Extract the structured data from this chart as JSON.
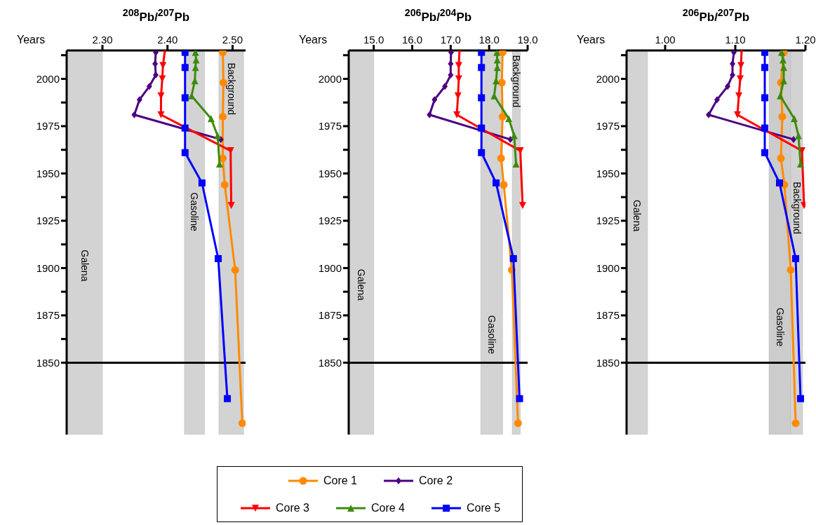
{
  "chart_data": [
    {
      "type": "line",
      "xlabel": "$^{208}$Pb/$^{207}$Pb",
      "ylabel": "Years",
      "xlim": [
        2.245,
        2.52
      ],
      "xticks": [
        {
          "value": 2.3,
          "label": "2.30"
        },
        {
          "value": 2.4,
          "label": "2.40"
        },
        {
          "value": 2.5,
          "label": "2.50"
        }
      ],
      "ylim": [
        1812,
        2015
      ],
      "yticks": [
        1850,
        {
          "value": 1862.5,
          "label": null
        },
        1875,
        {
          "value": 1887.5,
          "label": null
        },
        1900,
        {
          "value": 1912.5,
          "label": null
        },
        1925,
        {
          "value": 1937.5,
          "label": null
        },
        1950,
        {
          "value": 1962.5,
          "label": null
        },
        1975,
        {
          "value": 1987.5,
          "label": null
        },
        2000,
        {
          "value": 2012.5,
          "label": null
        }
      ],
      "bands": [
        {
          "axis": "x",
          "from": 2.245,
          "to": 2.3,
          "label": "Galena",
          "color": "#d3d3d3"
        },
        {
          "axis": "x",
          "from": 2.426,
          "to": 2.457,
          "label": "Gasoline",
          "color": "#d3d3d3"
        },
        {
          "axis": "x",
          "from": 2.479,
          "to": 2.517,
          "label": "Background",
          "color": "#d3d3d3"
        }
      ],
      "ref_lines": [
        {
          "axis": "y",
          "value": 1850,
          "color": "#000000"
        }
      ],
      "series": [
        {
          "color": "#ff8a00",
          "marker": "circle",
          "x": [
            2.485,
            2.486,
            2.485,
            2.485,
            2.488,
            2.504,
            2.515
          ],
          "values": [
            2014,
            1998,
            1980,
            1958,
            1944,
            1899,
            1818
          ]
        },
        {
          "color": "#4b0082",
          "marker": "diamond",
          "x": [
            2.382,
            2.381,
            2.382,
            2.372,
            2.357,
            2.349,
            2.482
          ],
          "values": [
            2014,
            2008,
            2002,
            1996,
            1989,
            1981,
            1968
          ]
        },
        {
          "color": "#ff0000",
          "marker": "triangle-down",
          "x": [
            2.396,
            2.393,
            2.392,
            2.39,
            2.39,
            2.497,
            2.498
          ],
          "values": [
            2015,
            2007,
            2000,
            1991,
            1981,
            1962,
            1933
          ]
        },
        {
          "color": "#3d8b0e",
          "marker": "triangle",
          "x": [
            2.443,
            2.444,
            2.443,
            2.442,
            2.437,
            2.467,
            2.477,
            2.48
          ],
          "values": [
            2014,
            2010,
            2006,
            1999,
            1991,
            1979,
            1970,
            1955
          ]
        },
        {
          "color": "#0000ff",
          "marker": "square",
          "x": [
            2.427,
            2.427,
            2.427,
            2.427,
            2.427,
            2.453,
            2.478,
            2.492
          ],
          "values": [
            2014,
            2006,
            1990,
            1974,
            1961,
            1945,
            1905,
            1831
          ]
        }
      ]
    },
    {
      "type": "line",
      "xlabel": "$^{206}$Pb/$^{204}$Pb",
      "ylabel": "Years",
      "legend": "bottom",
      "xlim": [
        14.35,
        19.0
      ],
      "xticks": [
        {
          "value": 15,
          "label": "15.0"
        },
        {
          "value": 16,
          "label": "16.0"
        },
        {
          "value": 17,
          "label": "17.0"
        },
        {
          "value": 18,
          "label": "18.0"
        },
        {
          "value": 19,
          "label": "19.0"
        }
      ],
      "ylim": [
        1812,
        2015
      ],
      "yticks": [
        1850,
        {
          "value": 1862.5,
          "label": null
        },
        1875,
        {
          "value": 1887.5,
          "label": null
        },
        1900,
        {
          "value": 1912.5,
          "label": null
        },
        1925,
        {
          "value": 1937.5,
          "label": null
        },
        1950,
        {
          "value": 1962.5,
          "label": null
        },
        1975,
        {
          "value": 1987.5,
          "label": null
        },
        2000,
        {
          "value": 2012.5,
          "label": null
        }
      ],
      "bands": [
        {
          "axis": "x",
          "from": 14.35,
          "to": 15.0,
          "label": "Galena",
          "color": "#d3d3d3"
        },
        {
          "axis": "x",
          "from": 17.78,
          "to": 18.35,
          "label": "Gasoline",
          "color": "#d3d3d3"
        },
        {
          "axis": "x",
          "from": 18.6,
          "to": 18.81,
          "label": "Background",
          "color": "#d3d3d3"
        }
      ],
      "ref_lines": [
        {
          "axis": "y",
          "value": 1850,
          "color": "#000000"
        }
      ],
      "series": [
        {
          "name": "Core 1",
          "color": "#ff8a00",
          "marker": "circle",
          "x": [
            18.35,
            18.33,
            18.35,
            18.31,
            18.38,
            18.59,
            18.75
          ],
          "values": [
            2014,
            1998,
            1980,
            1958,
            1944,
            1899,
            1818
          ]
        },
        {
          "name": "Core 2",
          "color": "#4b0082",
          "marker": "diamond",
          "x": [
            17.01,
            17.0,
            17.0,
            16.85,
            16.58,
            16.45,
            18.55
          ],
          "values": [
            2014,
            2008,
            2002,
            1996,
            1989,
            1981,
            1968
          ]
        },
        {
          "name": "Core 3",
          "color": "#ff0000",
          "marker": "triangle-down",
          "x": [
            17.23,
            17.21,
            17.21,
            17.19,
            17.16,
            18.81,
            18.87
          ],
          "values": [
            2015,
            2007,
            2000,
            1991,
            1981,
            1962,
            1933
          ]
        },
        {
          "name": "Core 4",
          "color": "#3d8b0e",
          "marker": "triangle",
          "x": [
            18.2,
            18.21,
            18.21,
            18.18,
            18.13,
            18.51,
            18.65,
            18.7
          ],
          "values": [
            2014,
            2010,
            2006,
            1999,
            1991,
            1979,
            1970,
            1955
          ]
        },
        {
          "name": "Core 5",
          "color": "#0000ff",
          "marker": "square",
          "x": [
            17.8,
            17.8,
            17.8,
            17.8,
            17.8,
            18.18,
            18.63,
            18.79
          ],
          "values": [
            2014,
            2006,
            1990,
            1974,
            1961,
            1945,
            1905,
            1831
          ]
        }
      ]
    },
    {
      "type": "line",
      "xlabel": "$^{206}$Pb/$^{207}$Pb",
      "ylabel": "Years",
      "xlim": [
        0.945,
        1.2
      ],
      "xticks": [
        {
          "value": 1.0,
          "label": "1.00"
        },
        {
          "value": 1.1,
          "label": "1.10"
        },
        {
          "value": 1.2,
          "label": "1.20"
        }
      ],
      "ylim": [
        1812,
        2015
      ],
      "yticks": [
        1850,
        {
          "value": 1862.5,
          "label": null
        },
        1875,
        {
          "value": 1887.5,
          "label": null
        },
        1900,
        {
          "value": 1912.5,
          "label": null
        },
        1925,
        {
          "value": 1937.5,
          "label": null
        },
        1950,
        {
          "value": 1962.5,
          "label": null
        },
        1975,
        {
          "value": 1987.5,
          "label": null
        },
        2000,
        {
          "value": 2012.5,
          "label": null
        }
      ],
      "bands": [
        {
          "axis": "x",
          "from": 0.945,
          "to": 0.975,
          "label": "Galena",
          "color": "#d3d3d3"
        },
        {
          "axis": "x",
          "from": 1.148,
          "to": 1.179,
          "label": "Gasoline",
          "color": "#cccccc"
        },
        {
          "axis": "x",
          "from": 1.179,
          "to": 1.196,
          "label": "Background",
          "color": "#d3d3d3"
        }
      ],
      "ref_lines": [
        {
          "axis": "y",
          "value": 1850,
          "color": "#000000"
        }
      ],
      "series": [
        {
          "color": "#ff8a00",
          "marker": "circle",
          "x": [
            1.169,
            1.165,
            1.167,
            1.165,
            1.17,
            1.179,
            1.186
          ],
          "values": [
            2014,
            1998,
            1980,
            1958,
            1944,
            1899,
            1818
          ]
        },
        {
          "color": "#4b0082",
          "marker": "diamond",
          "x": [
            1.098,
            1.096,
            1.096,
            1.089,
            1.074,
            1.062,
            1.183
          ],
          "values": [
            2014,
            2008,
            2002,
            1996,
            1989,
            1981,
            1968
          ]
        },
        {
          "color": "#ff0000",
          "marker": "triangle-down",
          "x": [
            1.109,
            1.108,
            1.107,
            1.105,
            1.103,
            1.195,
            1.198
          ],
          "values": [
            2015,
            2007,
            2000,
            1991,
            1981,
            1962,
            1933
          ]
        },
        {
          "color": "#3d8b0e",
          "marker": "triangle",
          "x": [
            1.166,
            1.168,
            1.169,
            1.169,
            1.164,
            1.184,
            1.19,
            1.193
          ],
          "values": [
            2014,
            2010,
            2006,
            1999,
            1991,
            1979,
            1970,
            1955
          ]
        },
        {
          "color": "#0000ff",
          "marker": "square",
          "x": [
            1.142,
            1.142,
            1.142,
            1.142,
            1.142,
            1.163,
            1.186,
            1.193
          ],
          "values": [
            2014,
            2006,
            1990,
            1974,
            1961,
            1945,
            1905,
            1831
          ]
        }
      ]
    }
  ]
}
